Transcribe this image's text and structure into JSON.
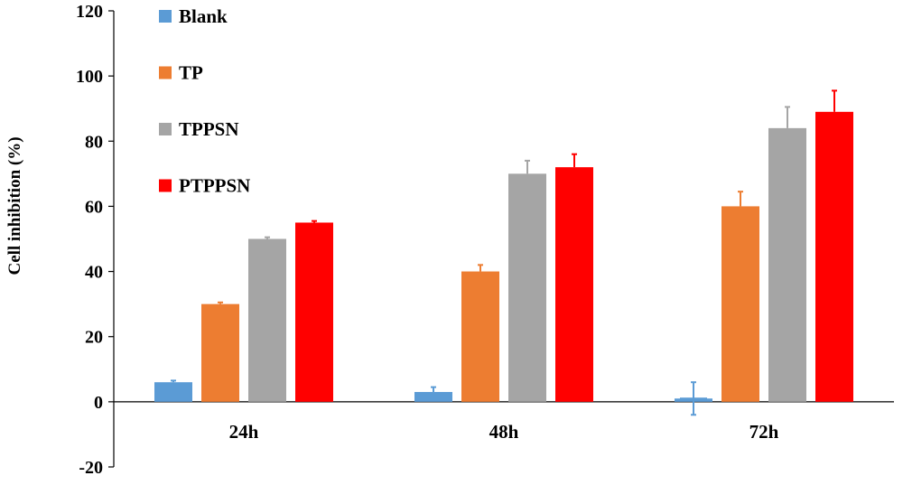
{
  "chart_data": {
    "type": "bar",
    "title": "",
    "xlabel": "",
    "ylabel": "Cell inhibition (%)",
    "ylim": [
      -20,
      120
    ],
    "yticks": [
      -20,
      0,
      20,
      40,
      60,
      80,
      100,
      120
    ],
    "categories": [
      "24h",
      "48h",
      "72h"
    ],
    "series": [
      {
        "name": "Blank",
        "color": "#5b9bd5",
        "values": [
          6,
          3,
          1
        ],
        "errors": [
          0.5,
          1.5,
          5
        ]
      },
      {
        "name": "TP",
        "color": "#ed7d31",
        "values": [
          30,
          40,
          60
        ],
        "errors": [
          0.5,
          2,
          4.5
        ]
      },
      {
        "name": "TPPSN",
        "color": "#a5a5a5",
        "values": [
          50,
          70,
          84
        ],
        "errors": [
          0.5,
          4,
          6.5
        ]
      },
      {
        "name": "PTPPSN",
        "color": "#ff0000",
        "values": [
          55,
          72,
          89
        ],
        "errors": [
          0.5,
          4,
          6.5
        ]
      }
    ],
    "grid": false,
    "legend": "top-left"
  }
}
